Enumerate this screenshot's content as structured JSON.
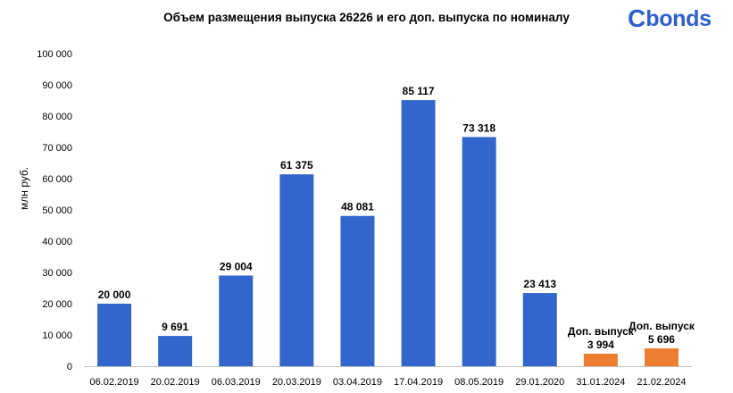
{
  "brand": {
    "logo_first": "C",
    "logo_rest": "bonds"
  },
  "colors": {
    "primary": "#3366cc",
    "additional": "#ed7d31",
    "logo": "#2e5fce",
    "axis": "#bfbfbf"
  },
  "chart_data": {
    "type": "bar",
    "title": "Объем размещения выпуска 26226 и его доп. выпуска по номиналу",
    "xlabel": "",
    "ylabel": "млн руб.",
    "ylim": [
      0,
      100000
    ],
    "yticks": [
      0,
      10000,
      20000,
      30000,
      40000,
      50000,
      60000,
      70000,
      80000,
      90000,
      100000
    ],
    "ytick_labels": [
      "0",
      "10 000",
      "20 000",
      "30 000",
      "40 000",
      "50 000",
      "60 000",
      "70 000",
      "80 000",
      "90 000",
      "100 000"
    ],
    "grid": false,
    "categories": [
      "06.02.2019",
      "20.02.2019",
      "06.03.2019",
      "20.03.2019",
      "03.04.2019",
      "17.04.2019",
      "08.05.2019",
      "29.01.2020",
      "31.01.2024",
      "21.02.2024"
    ],
    "values": [
      20000,
      9691,
      29004,
      61375,
      48081,
      85117,
      73318,
      23413,
      3994,
      5696
    ],
    "value_labels": [
      "20 000",
      "9 691",
      "29 004",
      "61 375",
      "48 081",
      "85 117",
      "73 318",
      "23 413",
      "3 994",
      "5 696"
    ],
    "annotations": [
      "",
      "",
      "",
      "",
      "",
      "",
      "",
      "",
      "Доп. выпуск",
      "Доп. выпуск"
    ],
    "bar_colors": [
      "#3366cc",
      "#3366cc",
      "#3366cc",
      "#3366cc",
      "#3366cc",
      "#3366cc",
      "#3366cc",
      "#3366cc",
      "#ed7d31",
      "#ed7d31"
    ]
  }
}
